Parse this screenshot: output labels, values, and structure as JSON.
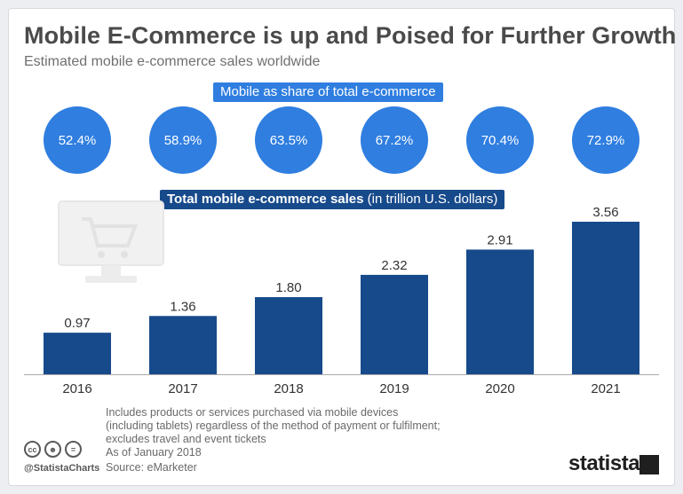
{
  "header": {
    "title": "Mobile E-Commerce is up and Poised for Further Growth",
    "subtitle": "Estimated mobile e-commerce sales worldwide"
  },
  "share_label": "Mobile as share of total e-commerce",
  "sales_label_bold": "Total mobile e-commerce sales",
  "sales_label_unit": " (in trillion U.S. dollars)",
  "shares": [
    "52.4%",
    "58.9%",
    "63.5%",
    "67.2%",
    "70.4%",
    "72.9%"
  ],
  "footer": {
    "note_lines": [
      "Includes products or services purchased via mobile devices",
      "(including tablets) regardless of the method of payment or fulfilment;",
      "excludes travel and event tickets",
      "As of January 2018"
    ],
    "source": "Source: eMarketer",
    "handle": "@StatistaCharts",
    "cc_icons": [
      "cc",
      "by",
      "="
    ],
    "logo": "statista"
  },
  "colors": {
    "bar": "#174a8b",
    "circle": "#2f7ee0",
    "axis": "#aaaaaa"
  },
  "chart_data": {
    "type": "bar",
    "categories": [
      "2016",
      "2017",
      "2018",
      "2019",
      "2020",
      "2021"
    ],
    "values": [
      0.97,
      1.36,
      1.8,
      2.32,
      2.91,
      3.56
    ],
    "value_labels": [
      "0.97",
      "1.36",
      "1.80",
      "2.32",
      "2.91",
      "3.56"
    ],
    "ylim": [
      0,
      3.56
    ],
    "grid": false,
    "legend": "none"
  }
}
